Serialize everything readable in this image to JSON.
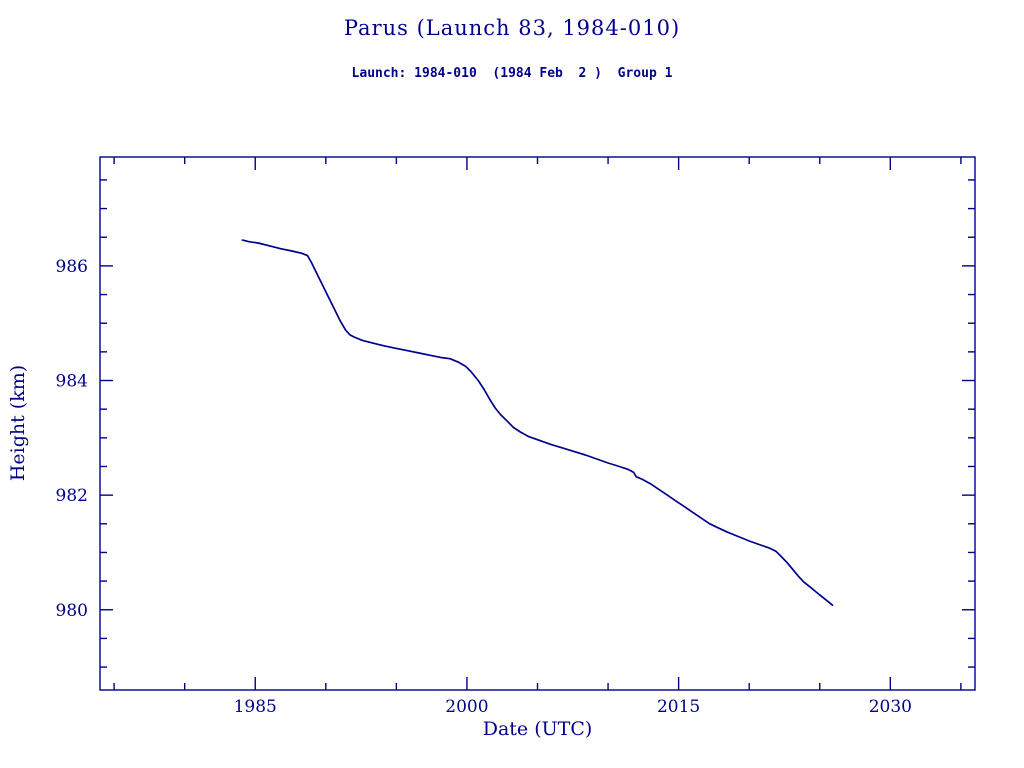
{
  "chart_data": {
    "type": "line",
    "title": "Parus (Launch 83, 1984-010)",
    "subtitle": "Launch: 1984-010  (1984 Feb  2 )  Group 1",
    "xlabel": "Date (UTC)",
    "ylabel": "Height (km)",
    "xlim": [
      1974,
      2036
    ],
    "ylim": [
      978.6,
      987.9
    ],
    "x_major_ticks": [
      1985,
      2000,
      2015,
      2030
    ],
    "x_minor_step": 5,
    "y_major_ticks": [
      980,
      982,
      984,
      986
    ],
    "y_minor_step": 0.5,
    "line_color": "#00008B",
    "background_color": "#ffffff",
    "legend": "none",
    "grid": false,
    "series": [
      {
        "name": "height_km",
        "points": [
          [
            1984.1,
            986.45
          ],
          [
            1984.6,
            986.42
          ],
          [
            1985.2,
            986.4
          ],
          [
            1986.0,
            986.35
          ],
          [
            1986.8,
            986.3
          ],
          [
            1987.6,
            986.26
          ],
          [
            1988.3,
            986.22
          ],
          [
            1988.7,
            986.18
          ],
          [
            1989.0,
            986.05
          ],
          [
            1989.4,
            985.85
          ],
          [
            1989.8,
            985.65
          ],
          [
            1990.2,
            985.45
          ],
          [
            1990.6,
            985.25
          ],
          [
            1991.0,
            985.05
          ],
          [
            1991.4,
            984.88
          ],
          [
            1991.7,
            984.8
          ],
          [
            1992.0,
            984.76
          ],
          [
            1992.6,
            984.7
          ],
          [
            1993.4,
            984.65
          ],
          [
            1994.2,
            984.6
          ],
          [
            1995.0,
            984.56
          ],
          [
            1995.8,
            984.52
          ],
          [
            1996.6,
            984.48
          ],
          [
            1997.4,
            984.44
          ],
          [
            1998.2,
            984.4
          ],
          [
            1998.8,
            984.38
          ],
          [
            1999.4,
            984.32
          ],
          [
            1999.9,
            984.25
          ],
          [
            2000.3,
            984.15
          ],
          [
            2000.8,
            984.0
          ],
          [
            2001.2,
            983.85
          ],
          [
            2001.6,
            983.68
          ],
          [
            2002.0,
            983.52
          ],
          [
            2002.4,
            983.4
          ],
          [
            2002.9,
            983.28
          ],
          [
            2003.3,
            983.18
          ],
          [
            2003.8,
            983.1
          ],
          [
            2004.4,
            983.02
          ],
          [
            2005.2,
            982.95
          ],
          [
            2006.0,
            982.88
          ],
          [
            2006.8,
            982.82
          ],
          [
            2007.6,
            982.76
          ],
          [
            2008.4,
            982.7
          ],
          [
            2009.2,
            982.63
          ],
          [
            2010.0,
            982.56
          ],
          [
            2010.8,
            982.5
          ],
          [
            2011.4,
            982.45
          ],
          [
            2011.8,
            982.4
          ],
          [
            2012.0,
            982.32
          ],
          [
            2012.4,
            982.28
          ],
          [
            2013.0,
            982.2
          ],
          [
            2013.6,
            982.1
          ],
          [
            2014.2,
            982.0
          ],
          [
            2014.8,
            981.9
          ],
          [
            2015.4,
            981.8
          ],
          [
            2016.0,
            981.7
          ],
          [
            2016.6,
            981.6
          ],
          [
            2017.2,
            981.5
          ],
          [
            2017.8,
            981.43
          ],
          [
            2018.4,
            981.36
          ],
          [
            2019.2,
            981.28
          ],
          [
            2020.0,
            981.2
          ],
          [
            2020.8,
            981.13
          ],
          [
            2021.4,
            981.08
          ],
          [
            2021.9,
            981.02
          ],
          [
            2022.3,
            980.92
          ],
          [
            2022.7,
            980.82
          ],
          [
            2023.1,
            980.7
          ],
          [
            2023.5,
            980.58
          ],
          [
            2023.9,
            980.48
          ],
          [
            2024.3,
            980.4
          ],
          [
            2024.8,
            980.3
          ],
          [
            2025.2,
            980.22
          ],
          [
            2025.6,
            980.14
          ],
          [
            2025.9,
            980.08
          ]
        ]
      }
    ]
  }
}
